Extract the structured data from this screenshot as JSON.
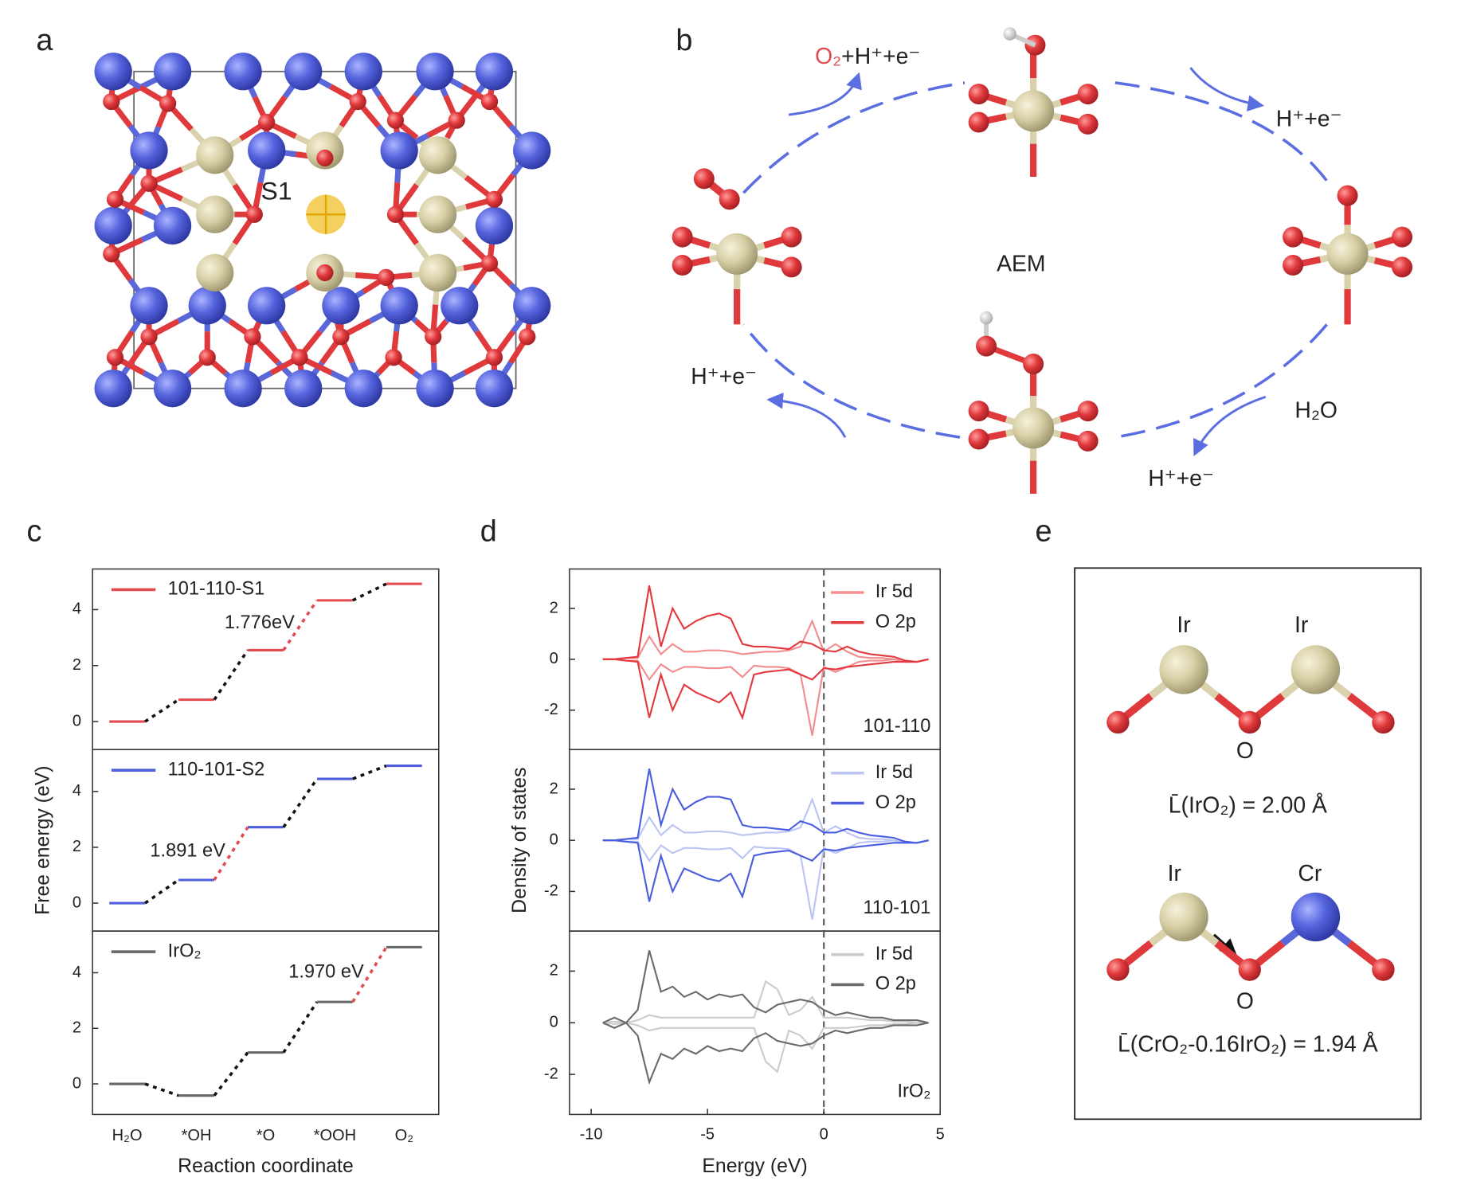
{
  "panel_labels": [
    "a",
    "b",
    "c",
    "d",
    "e"
  ],
  "structure": {
    "site_label": "S1"
  },
  "cycle": {
    "product_o2": "O₂",
    "product_rest": "+H⁺+e⁻",
    "step_top_right": "H⁺+e⁻",
    "center": "AEM",
    "step_left": "H⁺+e⁻",
    "reactant": "H₂O",
    "step_bottom_right": "H⁺+e⁻"
  },
  "bond_diagram": {
    "top": {
      "atom_labels": [
        "Ir",
        "Ir",
        "O"
      ],
      "caption": "L̄(IrO₂) = 2.00 Å"
    },
    "bottom": {
      "atom_labels": [
        "Ir",
        "Cr",
        "O"
      ],
      "caption": "L̄(CrO₂-0.16IrO₂) = 1.94 Å"
    }
  },
  "chart_data": [
    {
      "type": "step",
      "series": [
        {
          "name": "101-110-S1",
          "color": "#e34a4f",
          "values": [
            0,
            0.78,
            2.55,
            4.33,
            4.92
          ]
        }
      ],
      "ylim": [
        -1,
        5.45
      ],
      "yticks": [
        0,
        2,
        4
      ],
      "annotation": "1.776eV",
      "limiting_step": 3,
      "limiting_color": "#e34a4f",
      "connector_color": "#111111"
    },
    {
      "type": "step",
      "series": [
        {
          "name": "110-101-S2",
          "color": "#4f5fdc",
          "values": [
            0,
            0.83,
            2.72,
            4.45,
            4.92
          ]
        }
      ],
      "ylim": [
        -1,
        5.5
      ],
      "yticks": [
        0,
        2,
        4
      ],
      "annotation": "1.891 eV",
      "limiting_step": 2,
      "limiting_color": "#e34a4f",
      "connector_color": "#111111",
      "ylabel": "Free energy (eV)"
    },
    {
      "type": "step",
      "series": [
        {
          "name": "IrO₂",
          "color": "#666666",
          "values": [
            0,
            -0.42,
            1.13,
            2.95,
            4.92
          ]
        }
      ],
      "ylim": [
        -1.1,
        5.5
      ],
      "yticks": [
        0,
        2,
        4
      ],
      "annotation": "1.970 eV",
      "limiting_step": 4,
      "limiting_color": "#e34a4f",
      "connector_color": "#111111",
      "categories": [
        "H₂O",
        "*OH",
        "*O",
        "*OOH",
        "O₂"
      ],
      "xlabel": "Reaction coordinate"
    },
    {
      "type": "line",
      "label": "101-110",
      "xlim": [
        -10.93,
        5
      ],
      "ylim": [
        -3.55,
        3.55
      ],
      "yticks": [
        -2,
        0,
        2
      ],
      "fermi_level": 0,
      "x": [
        -9.5,
        -9,
        -8.5,
        -8,
        -7.5,
        -7,
        -6.5,
        -6,
        -5.5,
        -5,
        -4.5,
        -4,
        -3.5,
        -3,
        -2.5,
        -2,
        -1.5,
        -1,
        -0.5,
        0,
        0.5,
        1,
        1.5,
        2,
        2.5,
        3,
        3.5,
        4,
        4.5
      ],
      "series": [
        {
          "name": "Ir 5d",
          "color": "#f28d90",
          "values": [
            0,
            0,
            0.05,
            0.05,
            0.9,
            0.2,
            0.6,
            0.3,
            0.3,
            0.35,
            0.35,
            0.3,
            0.2,
            0.25,
            0.3,
            0.3,
            0.35,
            0.5,
            1.5,
            0.3,
            0.6,
            0.3,
            0.1,
            0.05,
            0.05,
            0,
            -0.1,
            -0.1,
            0
          ],
          "values_down": [
            0,
            0,
            -0.05,
            -0.05,
            -0.8,
            -0.2,
            -0.5,
            -0.3,
            -0.3,
            -0.35,
            -0.35,
            -0.3,
            -0.7,
            -0.25,
            -0.3,
            -0.3,
            -0.35,
            -0.6,
            -3.0,
            -0.3,
            -0.5,
            -0.3,
            -0.1,
            -0.05,
            -0.05,
            0,
            -0.1,
            -0.1,
            0
          ]
        },
        {
          "name": "O 2p",
          "color": "#e3383e",
          "values": [
            0,
            0,
            0.05,
            0.1,
            2.9,
            0.5,
            2.0,
            1.2,
            1.5,
            1.7,
            1.8,
            1.6,
            0.6,
            0.5,
            0.5,
            0.45,
            0.4,
            0.7,
            0.6,
            0.35,
            0.3,
            0.5,
            0.3,
            0.2,
            0.15,
            0.1,
            -0.05,
            -0.1,
            0
          ],
          "values_down": [
            0,
            0,
            -0.05,
            -0.1,
            -2.3,
            -0.6,
            -2.0,
            -1.0,
            -1.3,
            -1.5,
            -1.7,
            -1.3,
            -2.3,
            -0.6,
            -0.5,
            -0.45,
            -0.4,
            -0.6,
            -0.8,
            -0.35,
            -0.4,
            -0.3,
            -0.25,
            -0.2,
            -0.15,
            -0.1,
            -0.1,
            -0.1,
            0
          ]
        }
      ]
    },
    {
      "type": "line",
      "label": "110-101",
      "xlim": [
        -10.93,
        5
      ],
      "ylim": [
        -3.55,
        3.55
      ],
      "yticks": [
        -2,
        0,
        2
      ],
      "fermi_level": 0,
      "ylabel": "Density of states",
      "x": [
        -9.5,
        -9,
        -8.5,
        -8,
        -7.5,
        -7,
        -6.5,
        -6,
        -5.5,
        -5,
        -4.5,
        -4,
        -3.5,
        -3,
        -2.5,
        -2,
        -1.5,
        -1,
        -0.5,
        0,
        0.5,
        1,
        1.5,
        2,
        2.5,
        3,
        3.5,
        4,
        4.5
      ],
      "series": [
        {
          "name": "Ir 5d",
          "color": "#bcc4f3",
          "values": [
            0,
            0,
            0.05,
            0.05,
            0.9,
            0.2,
            0.6,
            0.3,
            0.3,
            0.35,
            0.35,
            0.3,
            0.2,
            0.25,
            0.3,
            0.3,
            0.35,
            0.5,
            1.6,
            0.3,
            0.55,
            0.3,
            0.1,
            0.05,
            0.05,
            0,
            -0.1,
            -0.1,
            0
          ],
          "values_down": [
            0,
            0,
            -0.05,
            -0.05,
            -0.8,
            -0.2,
            -0.5,
            -0.3,
            -0.3,
            -0.35,
            -0.35,
            -0.3,
            -0.7,
            -0.25,
            -0.3,
            -0.3,
            -0.35,
            -0.6,
            -3.1,
            -0.3,
            -0.5,
            -0.3,
            -0.1,
            -0.05,
            -0.05,
            0,
            -0.1,
            -0.1,
            0
          ]
        },
        {
          "name": "O 2p",
          "color": "#4a5ee0",
          "values": [
            0,
            0,
            0.05,
            0.1,
            2.8,
            0.6,
            2.0,
            1.2,
            1.5,
            1.7,
            1.7,
            1.6,
            0.6,
            0.5,
            0.5,
            0.45,
            0.4,
            0.75,
            0.6,
            0.3,
            0.3,
            0.45,
            0.3,
            0.2,
            0.15,
            0.1,
            -0.05,
            -0.1,
            0
          ],
          "values_down": [
            0,
            0,
            -0.05,
            -0.1,
            -2.4,
            -0.6,
            -2.0,
            -1.1,
            -1.3,
            -1.5,
            -1.6,
            -1.3,
            -2.2,
            -0.6,
            -0.5,
            -0.45,
            -0.4,
            -0.6,
            -0.8,
            -0.35,
            -0.4,
            -0.3,
            -0.25,
            -0.2,
            -0.15,
            -0.1,
            -0.1,
            -0.1,
            0
          ]
        }
      ]
    },
    {
      "type": "line",
      "label": "IrO₂",
      "xlim": [
        -10.93,
        5
      ],
      "ylim": [
        -3.55,
        3.55
      ],
      "yticks": [
        -2,
        0,
        2
      ],
      "fermi_level": 0,
      "xticks": [
        -10,
        -5,
        0,
        5
      ],
      "xlabel": "Energy (eV)",
      "x": [
        -9.5,
        -9,
        -8.5,
        -8,
        -7.5,
        -7,
        -6.5,
        -6,
        -5.5,
        -5,
        -4.5,
        -4,
        -3.5,
        -3,
        -2.5,
        -2,
        -1.5,
        -1,
        -0.5,
        0,
        0.5,
        1,
        1.5,
        2,
        2.5,
        3,
        3.5,
        4,
        4.5
      ],
      "series": [
        {
          "name": "Ir 5d",
          "color": "#cccccc",
          "values": [
            0,
            0.05,
            0,
            0.1,
            0.3,
            0.2,
            0.2,
            0.2,
            0.2,
            0.2,
            0.2,
            0.2,
            0.2,
            0.2,
            1.6,
            1.3,
            0.3,
            0.5,
            1.0,
            0.2,
            0.2,
            0.2,
            0.15,
            0.1,
            0.1,
            0.05,
            0.05,
            0,
            0
          ],
          "values_down": [
            0,
            -0.05,
            0,
            -0.1,
            -0.3,
            -0.2,
            -0.2,
            -0.2,
            -0.2,
            -0.2,
            -0.2,
            -0.2,
            -0.2,
            -0.2,
            -1.5,
            -1.9,
            -0.3,
            -0.5,
            -1.0,
            -0.2,
            -0.2,
            -0.2,
            -0.15,
            -0.1,
            -0.1,
            -0.05,
            -0.05,
            0,
            0
          ]
        },
        {
          "name": "O 2p",
          "color": "#6b6b6b",
          "values": [
            0,
            0.2,
            0,
            0.5,
            2.8,
            1.2,
            1.4,
            1.0,
            1.2,
            0.9,
            1.1,
            1.0,
            1.1,
            0.6,
            0.4,
            0.7,
            0.8,
            0.9,
            0.8,
            0.5,
            0.3,
            0.4,
            0.3,
            0.2,
            0.2,
            0.1,
            0.1,
            0.1,
            0
          ],
          "values_down": [
            0,
            -0.2,
            0,
            -0.5,
            -2.3,
            -1.2,
            -1.4,
            -1.0,
            -1.2,
            -0.9,
            -1.1,
            -1.0,
            -1.1,
            -0.6,
            -0.4,
            -0.7,
            -0.8,
            -0.9,
            -0.8,
            -0.5,
            -0.3,
            -0.4,
            -0.3,
            -0.2,
            -0.2,
            -0.1,
            -0.1,
            -0.1,
            0
          ]
        }
      ]
    }
  ]
}
